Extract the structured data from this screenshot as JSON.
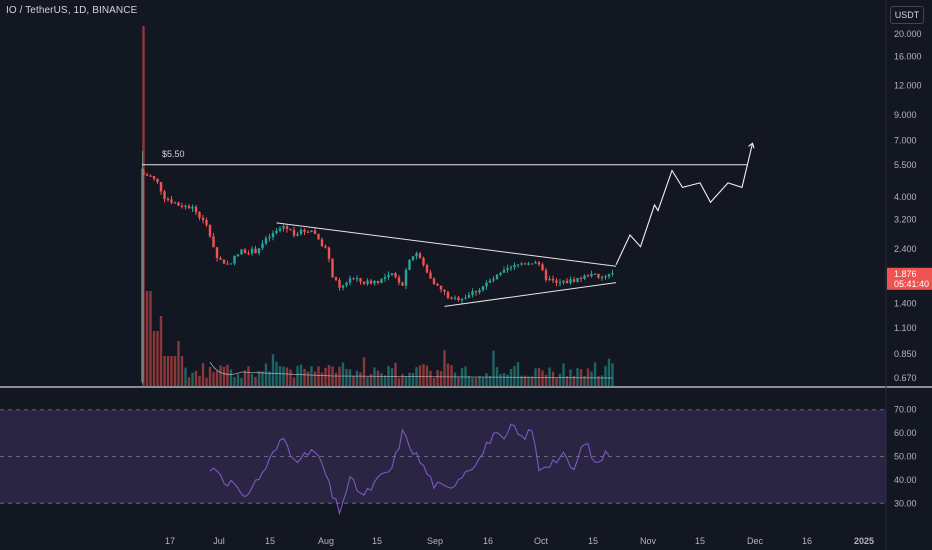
{
  "header": {
    "title": "IO / TetherUS, 1D, BINANCE",
    "currency_label": "USDT"
  },
  "colors": {
    "up": "#26a69a",
    "down": "#ef5350",
    "rsi_line": "#7e57c2",
    "rsi_band": "#2a2542",
    "bg": "#131722",
    "grid_text": "#b2b5be",
    "last_price_bg": "#ef5350"
  },
  "chart_data": [
    {
      "type": "candlestick",
      "title": "",
      "y_scale": "log",
      "ylim": [
        0.62,
        22.5
      ],
      "yticks": [
        "20.000",
        "16.000",
        "12.000",
        "9.000",
        "7.000",
        "5.500",
        "4.000",
        "3.200",
        "2.400",
        "1.400",
        "1.100",
        "0.850",
        "0.670"
      ],
      "xticks": [
        "17",
        "Jul",
        "15",
        "Aug",
        "15",
        "Sep",
        "16",
        "Oct",
        "15",
        "Nov",
        "15",
        "Dec",
        "16",
        "2025"
      ],
      "close_anchors": [
        [
          "2024-06-12",
          5.0
        ],
        [
          "2024-06-14",
          4.9
        ],
        [
          "2024-06-16",
          4.6
        ],
        [
          "2024-06-18",
          4.0
        ],
        [
          "2024-06-22",
          3.7
        ],
        [
          "2024-06-26",
          3.6
        ],
        [
          "2024-06-30",
          3.0
        ],
        [
          "2024-07-03",
          2.2
        ],
        [
          "2024-07-06",
          2.05
        ],
        [
          "2024-07-10",
          2.35
        ],
        [
          "2024-07-14",
          2.35
        ],
        [
          "2024-07-18",
          2.7
        ],
        [
          "2024-07-22",
          3.0
        ],
        [
          "2024-07-25",
          2.8
        ],
        [
          "2024-07-30",
          2.9
        ],
        [
          "2024-08-03",
          2.4
        ],
        [
          "2024-08-05",
          1.85
        ],
        [
          "2024-08-07",
          1.6
        ],
        [
          "2024-08-10",
          1.8
        ],
        [
          "2024-08-14",
          1.72
        ],
        [
          "2024-08-18",
          1.75
        ],
        [
          "2024-08-22",
          1.85
        ],
        [
          "2024-08-25",
          1.7
        ],
        [
          "2024-08-27",
          2.2
        ],
        [
          "2024-08-29",
          2.3
        ],
        [
          "2024-09-01",
          1.9
        ],
        [
          "2024-09-04",
          1.65
        ],
        [
          "2024-09-08",
          1.45
        ],
        [
          "2024-09-12",
          1.5
        ],
        [
          "2024-09-16",
          1.62
        ],
        [
          "2024-09-20",
          1.78
        ],
        [
          "2024-09-24",
          1.95
        ],
        [
          "2024-09-28",
          2.08
        ],
        [
          "2024-10-02",
          2.12
        ],
        [
          "2024-10-05",
          1.8
        ],
        [
          "2024-10-08",
          1.7
        ],
        [
          "2024-10-12",
          1.75
        ],
        [
          "2024-10-16",
          1.82
        ],
        [
          "2024-10-18",
          1.9
        ],
        [
          "2024-10-20",
          1.78
        ],
        [
          "2024-10-24",
          1.876
        ]
      ],
      "price_label": "$5.50",
      "resistance": {
        "price": 5.5
      },
      "descending_line": [
        [
          "2024-07-20",
          3.1
        ],
        [
          "2024-10-25",
          2.02
        ]
      ],
      "ascending_line": [
        [
          "2024-09-06",
          1.36
        ],
        [
          "2024-10-25",
          1.72
        ]
      ],
      "projection": [
        [
          "2024-10-25",
          2.05
        ],
        [
          "2024-10-29",
          2.75
        ],
        [
          "2024-11-01",
          2.45
        ],
        [
          "2024-11-05",
          3.7
        ],
        [
          "2024-11-06",
          3.5
        ],
        [
          "2024-11-10",
          5.2
        ],
        [
          "2024-11-13",
          4.4
        ],
        [
          "2024-11-18",
          4.6
        ],
        [
          "2024-11-21",
          3.8
        ],
        [
          "2024-11-26",
          4.6
        ],
        [
          "2024-11-30",
          4.4
        ],
        [
          "2024-12-03",
          6.8
        ]
      ],
      "last_price": {
        "value": "1.876",
        "countdown": "05:41:40"
      }
    },
    {
      "type": "line",
      "title": "",
      "series": [
        {
          "name": "",
          "values": []
        }
      ],
      "ylim": [
        22,
        75
      ],
      "yticks": [
        "70.00",
        "60.00",
        "50.00",
        "40.00",
        "30.00"
      ],
      "rsi_anchors": [
        [
          "2024-07-01",
          44
        ],
        [
          "2024-07-03",
          45
        ],
        [
          "2024-07-05",
          40
        ],
        [
          "2024-07-08",
          38
        ],
        [
          "2024-07-10",
          32
        ],
        [
          "2024-07-13",
          37
        ],
        [
          "2024-07-16",
          43
        ],
        [
          "2024-07-19",
          51
        ],
        [
          "2024-07-22",
          58
        ],
        [
          "2024-07-24",
          52
        ],
        [
          "2024-07-27",
          48
        ],
        [
          "2024-07-30",
          53
        ],
        [
          "2024-08-02",
          47
        ],
        [
          "2024-08-05",
          33
        ],
        [
          "2024-08-07",
          27
        ],
        [
          "2024-08-10",
          40
        ],
        [
          "2024-08-14",
          33
        ],
        [
          "2024-08-18",
          40
        ],
        [
          "2024-08-22",
          45
        ],
        [
          "2024-08-25",
          60
        ],
        [
          "2024-08-27",
          55
        ],
        [
          "2024-08-30",
          48
        ],
        [
          "2024-09-03",
          38
        ],
        [
          "2024-09-07",
          36
        ],
        [
          "2024-09-12",
          44
        ],
        [
          "2024-09-16",
          49
        ],
        [
          "2024-09-20",
          60
        ],
        [
          "2024-09-23",
          56
        ],
        [
          "2024-09-25",
          63
        ],
        [
          "2024-09-28",
          58
        ],
        [
          "2024-10-01",
          61
        ],
        [
          "2024-10-03",
          45
        ],
        [
          "2024-10-07",
          48
        ],
        [
          "2024-10-10",
          50
        ],
        [
          "2024-10-13",
          44
        ],
        [
          "2024-10-16",
          57
        ],
        [
          "2024-10-19",
          47
        ],
        [
          "2024-10-23",
          52
        ]
      ]
    }
  ]
}
